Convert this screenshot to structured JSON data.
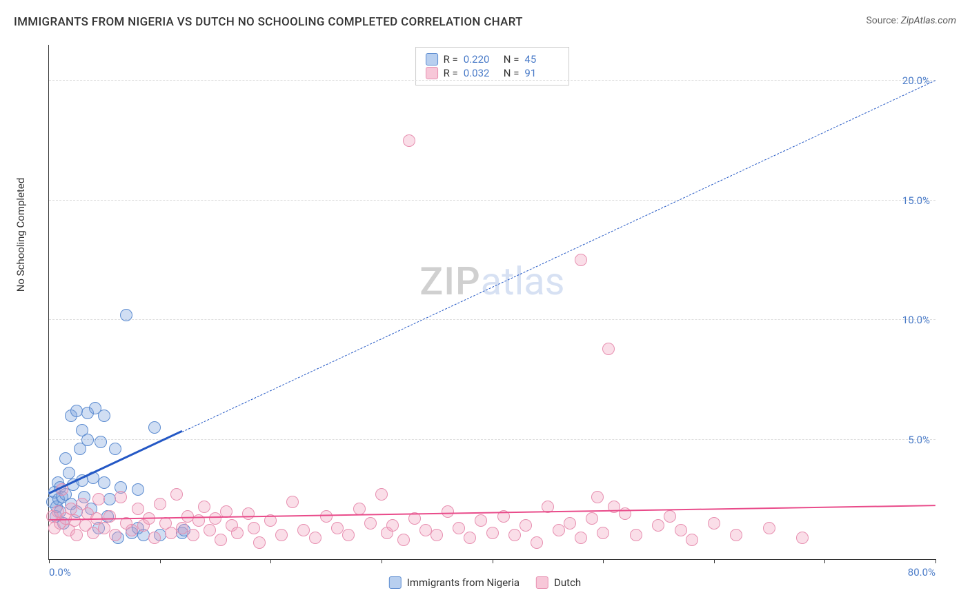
{
  "title": "IMMIGRANTS FROM NIGERIA VS DUTCH NO SCHOOLING COMPLETED CORRELATION CHART",
  "source_prefix": "Source: ",
  "source_name": "ZipAtlas.com",
  "watermark_a": "ZIP",
  "watermark_b": "atlas",
  "y_axis_label": "No Schooling Completed",
  "chart": {
    "type": "scatter",
    "background_color": "#ffffff",
    "grid_color": "#dddddd",
    "axis_color": "#333333",
    "xlim": [
      0,
      80
    ],
    "ylim": [
      0,
      21.5
    ],
    "x_ticks": [
      0,
      10,
      20,
      30,
      40,
      50,
      60,
      70,
      80
    ],
    "x_tick_labels": {
      "0": "0.0%",
      "80": "80.0%"
    },
    "y_ticks": [
      5,
      10,
      15,
      20
    ],
    "y_tick_labels": {
      "5": "5.0%",
      "10": "10.0%",
      "15": "15.0%",
      "20": "20.0%"
    },
    "label_color": "#4a7bc8",
    "label_fontsize": 15,
    "point_radius": 9,
    "point_stroke_width": 1.5,
    "series": [
      {
        "name": "Immigrants from Nigeria",
        "key": "nigeria",
        "fill": "rgba(120,160,220,0.35)",
        "stroke": "#5b8bd0",
        "swatch_fill": "#b8cfef",
        "swatch_stroke": "#5b8bd0",
        "R": "0.220",
        "N": "45",
        "trend": {
          "x1": 0,
          "y1": 2.7,
          "x2": 12,
          "y2": 5.3,
          "color": "#2458c5",
          "width": 3,
          "dash": false,
          "extend": {
            "x2": 80,
            "y2": 20.0,
            "color": "#2458c5",
            "width": 1.5,
            "dash": true
          }
        },
        "points": [
          [
            0.3,
            2.4
          ],
          [
            0.5,
            2.8
          ],
          [
            0.6,
            1.8
          ],
          [
            0.7,
            2.2
          ],
          [
            0.8,
            3.2
          ],
          [
            0.9,
            2.5
          ],
          [
            1.0,
            2.0
          ],
          [
            1.0,
            3.0
          ],
          [
            1.2,
            2.6
          ],
          [
            1.3,
            1.5
          ],
          [
            1.5,
            4.2
          ],
          [
            1.5,
            2.7
          ],
          [
            1.8,
            3.6
          ],
          [
            2.0,
            2.3
          ],
          [
            2.0,
            6.0
          ],
          [
            2.2,
            3.1
          ],
          [
            2.5,
            6.2
          ],
          [
            2.5,
            2.0
          ],
          [
            2.8,
            4.6
          ],
          [
            3.0,
            3.3
          ],
          [
            3.0,
            5.4
          ],
          [
            3.2,
            2.6
          ],
          [
            3.5,
            6.1
          ],
          [
            3.5,
            5.0
          ],
          [
            3.8,
            2.1
          ],
          [
            4.0,
            3.4
          ],
          [
            4.2,
            6.3
          ],
          [
            4.5,
            1.3
          ],
          [
            4.7,
            4.9
          ],
          [
            5.0,
            3.2
          ],
          [
            5.0,
            6.0
          ],
          [
            5.3,
            1.8
          ],
          [
            5.5,
            2.5
          ],
          [
            6.0,
            4.6
          ],
          [
            6.2,
            0.9
          ],
          [
            6.5,
            3.0
          ],
          [
            7.0,
            10.2
          ],
          [
            7.5,
            1.1
          ],
          [
            8.0,
            2.9
          ],
          [
            8.0,
            1.3
          ],
          [
            8.5,
            1.0
          ],
          [
            9.5,
            5.5
          ],
          [
            10.0,
            1.0
          ],
          [
            12.0,
            1.1
          ],
          [
            12.2,
            1.2
          ]
        ]
      },
      {
        "name": "Dutch",
        "key": "dutch",
        "fill": "rgba(240,160,190,0.35)",
        "stroke": "#e78fb0",
        "swatch_fill": "#f7c7d8",
        "swatch_stroke": "#e78fb0",
        "R": "0.032",
        "N": "91",
        "trend": {
          "x1": 0,
          "y1": 1.6,
          "x2": 80,
          "y2": 2.2,
          "color": "#e94b8a",
          "width": 2.5,
          "dash": false
        },
        "points": [
          [
            0.3,
            1.8
          ],
          [
            0.5,
            1.3
          ],
          [
            0.8,
            2.0
          ],
          [
            1.0,
            1.5
          ],
          [
            1.2,
            2.9
          ],
          [
            1.5,
            1.7
          ],
          [
            1.8,
            1.2
          ],
          [
            2.0,
            2.1
          ],
          [
            2.3,
            1.6
          ],
          [
            2.5,
            1.0
          ],
          [
            3.0,
            2.3
          ],
          [
            3.3,
            1.4
          ],
          [
            3.5,
            1.9
          ],
          [
            4.0,
            1.1
          ],
          [
            4.3,
            1.7
          ],
          [
            4.5,
            2.5
          ],
          [
            5.0,
            1.3
          ],
          [
            5.5,
            1.8
          ],
          [
            6.0,
            1.0
          ],
          [
            6.5,
            2.6
          ],
          [
            7.0,
            1.5
          ],
          [
            7.5,
            1.2
          ],
          [
            8.0,
            2.1
          ],
          [
            8.5,
            1.4
          ],
          [
            9.0,
            1.7
          ],
          [
            9.5,
            0.9
          ],
          [
            10.0,
            2.3
          ],
          [
            10.5,
            1.5
          ],
          [
            11.0,
            1.1
          ],
          [
            11.5,
            2.7
          ],
          [
            12.0,
            1.3
          ],
          [
            12.5,
            1.8
          ],
          [
            13.0,
            1.0
          ],
          [
            13.5,
            1.6
          ],
          [
            14.0,
            2.2
          ],
          [
            14.5,
            1.2
          ],
          [
            15.0,
            1.7
          ],
          [
            15.5,
            0.8
          ],
          [
            16.0,
            2.0
          ],
          [
            16.5,
            1.4
          ],
          [
            17.0,
            1.1
          ],
          [
            18.0,
            1.9
          ],
          [
            18.5,
            1.3
          ],
          [
            19.0,
            0.7
          ],
          [
            20.0,
            1.6
          ],
          [
            21.0,
            1.0
          ],
          [
            22.0,
            2.4
          ],
          [
            23.0,
            1.2
          ],
          [
            24.0,
            0.9
          ],
          [
            25.0,
            1.8
          ],
          [
            26.0,
            1.3
          ],
          [
            27.0,
            1.0
          ],
          [
            28.0,
            2.1
          ],
          [
            29.0,
            1.5
          ],
          [
            30.0,
            2.7
          ],
          [
            30.5,
            1.1
          ],
          [
            31.0,
            1.4
          ],
          [
            32.0,
            0.8
          ],
          [
            33.0,
            1.7
          ],
          [
            34.0,
            1.2
          ],
          [
            35.0,
            1.0
          ],
          [
            36.0,
            2.0
          ],
          [
            37.0,
            1.3
          ],
          [
            38.0,
            0.9
          ],
          [
            39.0,
            1.6
          ],
          [
            40.0,
            1.1
          ],
          [
            41.0,
            1.8
          ],
          [
            42.0,
            1.0
          ],
          [
            43.0,
            1.4
          ],
          [
            44.0,
            0.7
          ],
          [
            45.0,
            2.2
          ],
          [
            46.0,
            1.2
          ],
          [
            47.0,
            1.5
          ],
          [
            48.0,
            0.9
          ],
          [
            49.0,
            1.7
          ],
          [
            50.0,
            1.1
          ],
          [
            52.0,
            1.9
          ],
          [
            53.0,
            1.0
          ],
          [
            55.0,
            1.4
          ],
          [
            57.0,
            1.2
          ],
          [
            58.0,
            0.8
          ],
          [
            60.0,
            1.5
          ],
          [
            62.0,
            1.0
          ],
          [
            65.0,
            1.3
          ],
          [
            68.0,
            0.9
          ],
          [
            32.5,
            17.5
          ],
          [
            48.0,
            12.5
          ],
          [
            50.5,
            8.8
          ],
          [
            51.0,
            2.2
          ],
          [
            56.0,
            1.8
          ],
          [
            49.5,
            2.6
          ]
        ]
      }
    ]
  },
  "stats_labels": {
    "R": "R =",
    "N": "N ="
  },
  "legend_bottom": [
    {
      "key": "nigeria",
      "label": "Immigrants from Nigeria"
    },
    {
      "key": "dutch",
      "label": "Dutch"
    }
  ]
}
